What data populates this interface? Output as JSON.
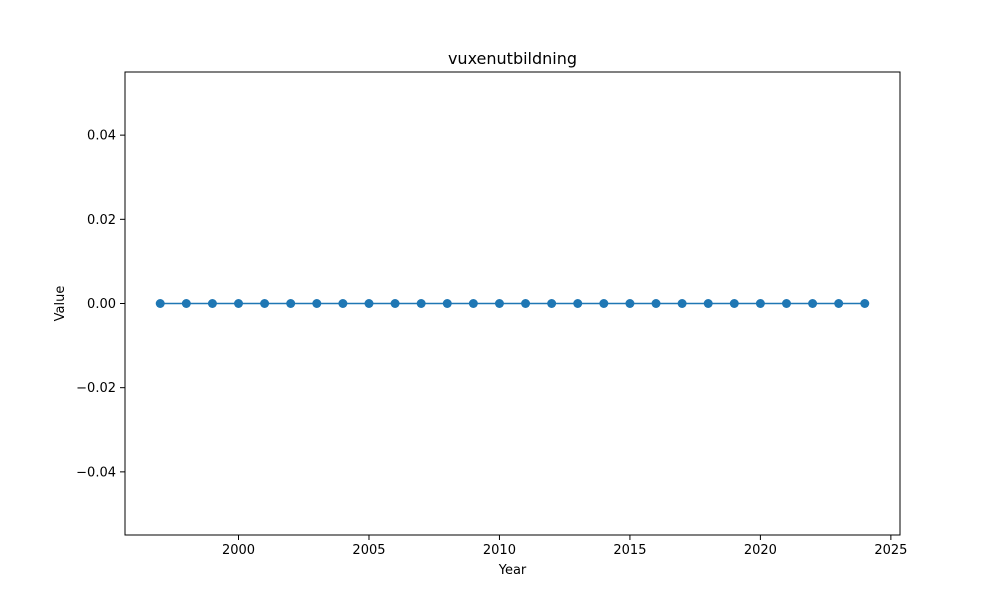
{
  "chart_data": {
    "type": "line",
    "title": "vuxenutbildning",
    "xlabel": "Year",
    "ylabel": "Value",
    "x": [
      1997,
      1998,
      1999,
      2000,
      2001,
      2002,
      2003,
      2004,
      2005,
      2006,
      2007,
      2008,
      2009,
      2010,
      2011,
      2012,
      2013,
      2014,
      2015,
      2016,
      2017,
      2018,
      2019,
      2020,
      2021,
      2022,
      2023,
      2024
    ],
    "series": [
      {
        "name": "vuxenutbildning",
        "color": "#1f77b4",
        "values": [
          0,
          0,
          0,
          0,
          0,
          0,
          0,
          0,
          0,
          0,
          0,
          0,
          0,
          0,
          0,
          0,
          0,
          0,
          0,
          0,
          0,
          0,
          0,
          0,
          0,
          0,
          0,
          0
        ]
      }
    ],
    "xlim": [
      1995.65,
      2025.35
    ],
    "ylim": [
      -0.055,
      0.055
    ],
    "xticks": [
      2000,
      2005,
      2010,
      2015,
      2020,
      2025
    ],
    "xtick_labels": [
      "2000",
      "2005",
      "2010",
      "2015",
      "2020",
      "2025"
    ],
    "yticks": [
      -0.04,
      -0.02,
      0.0,
      0.02,
      0.04
    ],
    "ytick_labels": [
      "−0.04",
      "−0.02",
      "0.00",
      "0.02",
      "0.04"
    ],
    "grid": false,
    "legend": "none"
  }
}
